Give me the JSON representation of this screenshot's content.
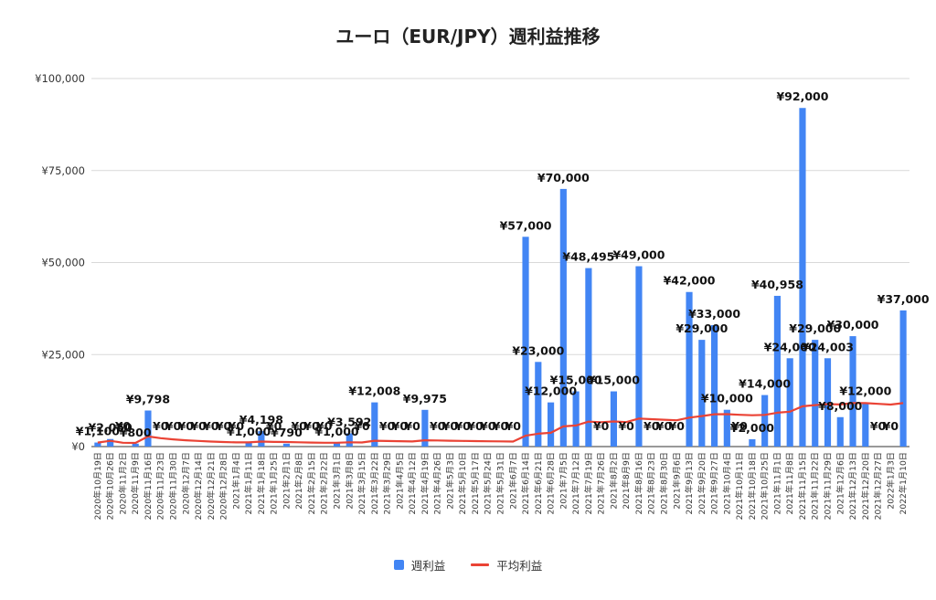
{
  "chart_data": {
    "type": "bar",
    "title": "ユーロ（EUR/JPY）週利益推移",
    "xlabel": "",
    "ylabel": "",
    "ylim": [
      0,
      100000
    ],
    "y_ticks": [
      "¥0",
      "¥25,000",
      "¥50,000",
      "¥75,000",
      "¥100,000"
    ],
    "grid": true,
    "legend_position": "bottom",
    "categories": [
      "2020年10月19日",
      "2020年10月26日",
      "2020年11月2日",
      "2020年11月9日",
      "2020年11月16日",
      "2020年11月23日",
      "2020年11月30日",
      "2020年12月7日",
      "2020年12月14日",
      "2020年12月21日",
      "2020年12月28日",
      "2021年1月4日",
      "2021年1月11日",
      "2021年1月18日",
      "2021年1月25日",
      "2021年2月1日",
      "2021年2月8日",
      "2021年2月15日",
      "2021年2月22日",
      "2021年3月1日",
      "2021年3月8日",
      "2021年3月15日",
      "2021年3月22日",
      "2021年3月29日",
      "2021年4月5日",
      "2021年4月12日",
      "2021年4月19日",
      "2021年4月26日",
      "2021年5月3日",
      "2021年5月10日",
      "2021年5月17日",
      "2021年5月24日",
      "2021年5月31日",
      "2021年6月7日",
      "2021年6月14日",
      "2021年6月21日",
      "2021年6月28日",
      "2021年7月5日",
      "2021年7月12日",
      "2021年7月19日",
      "2021年7月26日",
      "2021年8月2日",
      "2021年8月9日",
      "2021年8月16日",
      "2021年8月23日",
      "2021年8月30日",
      "2021年9月6日",
      "2021年9月13日",
      "2021年9月20日",
      "2021年9月27日",
      "2021年10月4日",
      "2021年10月11日",
      "2021年10月18日",
      "2021年10月25日",
      "2021年11月1日",
      "2021年11月8日",
      "2021年11月15日",
      "2021年11月22日",
      "2021年11月29日",
      "2021年12月6日",
      "2021年12月13日",
      "2021年12月20日",
      "2021年12月27日",
      "2022年1月3日",
      "2022年1月10日"
    ],
    "series": [
      {
        "name": "週利益",
        "type": "bar",
        "color": "#4285f4",
        "values": [
          1100,
          2050,
          0,
          800,
          9798,
          0,
          0,
          0,
          0,
          0,
          0,
          0,
          1000,
          4198,
          0,
          790,
          0,
          0,
          0,
          1000,
          3592,
          0,
          12008,
          0,
          0,
          0,
          9975,
          0,
          0,
          0,
          0,
          0,
          0,
          0,
          57000,
          23000,
          12000,
          70000,
          15000,
          48495,
          0,
          15000,
          0,
          49000,
          0,
          0,
          0,
          42000,
          29000,
          33000,
          10000,
          0,
          2000,
          14000,
          40958,
          24000,
          92000,
          29000,
          24003,
          8000,
          30000,
          12000,
          0,
          0,
          37000
        ],
        "value_labels": [
          "¥1,100",
          "¥2,050",
          "¥0",
          "¥800",
          "¥9,798",
          "¥0",
          "¥0",
          "¥0",
          "¥0",
          "¥0",
          "¥0",
          "¥0",
          "¥1,000",
          "¥4,198",
          "¥0",
          "¥790",
          "¥0",
          "¥0",
          "¥0",
          "¥1,000",
          "¥3,592",
          "¥0",
          "¥12,008",
          "¥0",
          "¥0",
          "¥0",
          "¥9,975",
          "¥0",
          "¥0",
          "¥0",
          "¥0",
          "¥0",
          "¥0",
          "¥0",
          "¥57,000",
          "¥23,000",
          "¥12,000",
          "¥70,000",
          "¥15,000",
          "¥48,495",
          "¥0",
          "¥15,000",
          "¥0",
          "¥49,000",
          "¥0",
          "¥0",
          "¥0",
          "¥42,000",
          "¥29,000",
          "¥33,000",
          "¥10,000",
          "¥0",
          "¥2,000",
          "¥14,000",
          "¥40,958",
          "¥24,000",
          "¥92,000",
          "¥29,000",
          "¥24,003",
          "¥8,000",
          "¥30,000",
          "¥12,000",
          "¥0",
          "¥0",
          "¥37,000"
        ]
      },
      {
        "name": "平均利益",
        "type": "line",
        "color": "#ea4335",
        "values": [
          1100,
          1575,
          1050,
          988,
          2750,
          2291,
          1964,
          1718,
          1527,
          1374,
          1249,
          1145,
          1134,
          1353,
          1263,
          1233,
          1160,
          1096,
          1038,
          1036,
          1158,
          1105,
          1579,
          1513,
          1453,
          1397,
          1715,
          1654,
          1597,
          1544,
          1494,
          1447,
          1403,
          1362,
          2952,
          3508,
          3738,
          5481,
          5720,
          6785,
          6619,
          6820,
          6661,
          7620,
          7451,
          7289,
          7134,
          7859,
          8293,
          8786,
          8815,
          8645,
          8520,
          8620,
          9200,
          9480,
          10937,
          11271,
          11527,
          11451,
          11816,
          11820,
          11601,
          11419,
          11812
        ]
      }
    ]
  }
}
